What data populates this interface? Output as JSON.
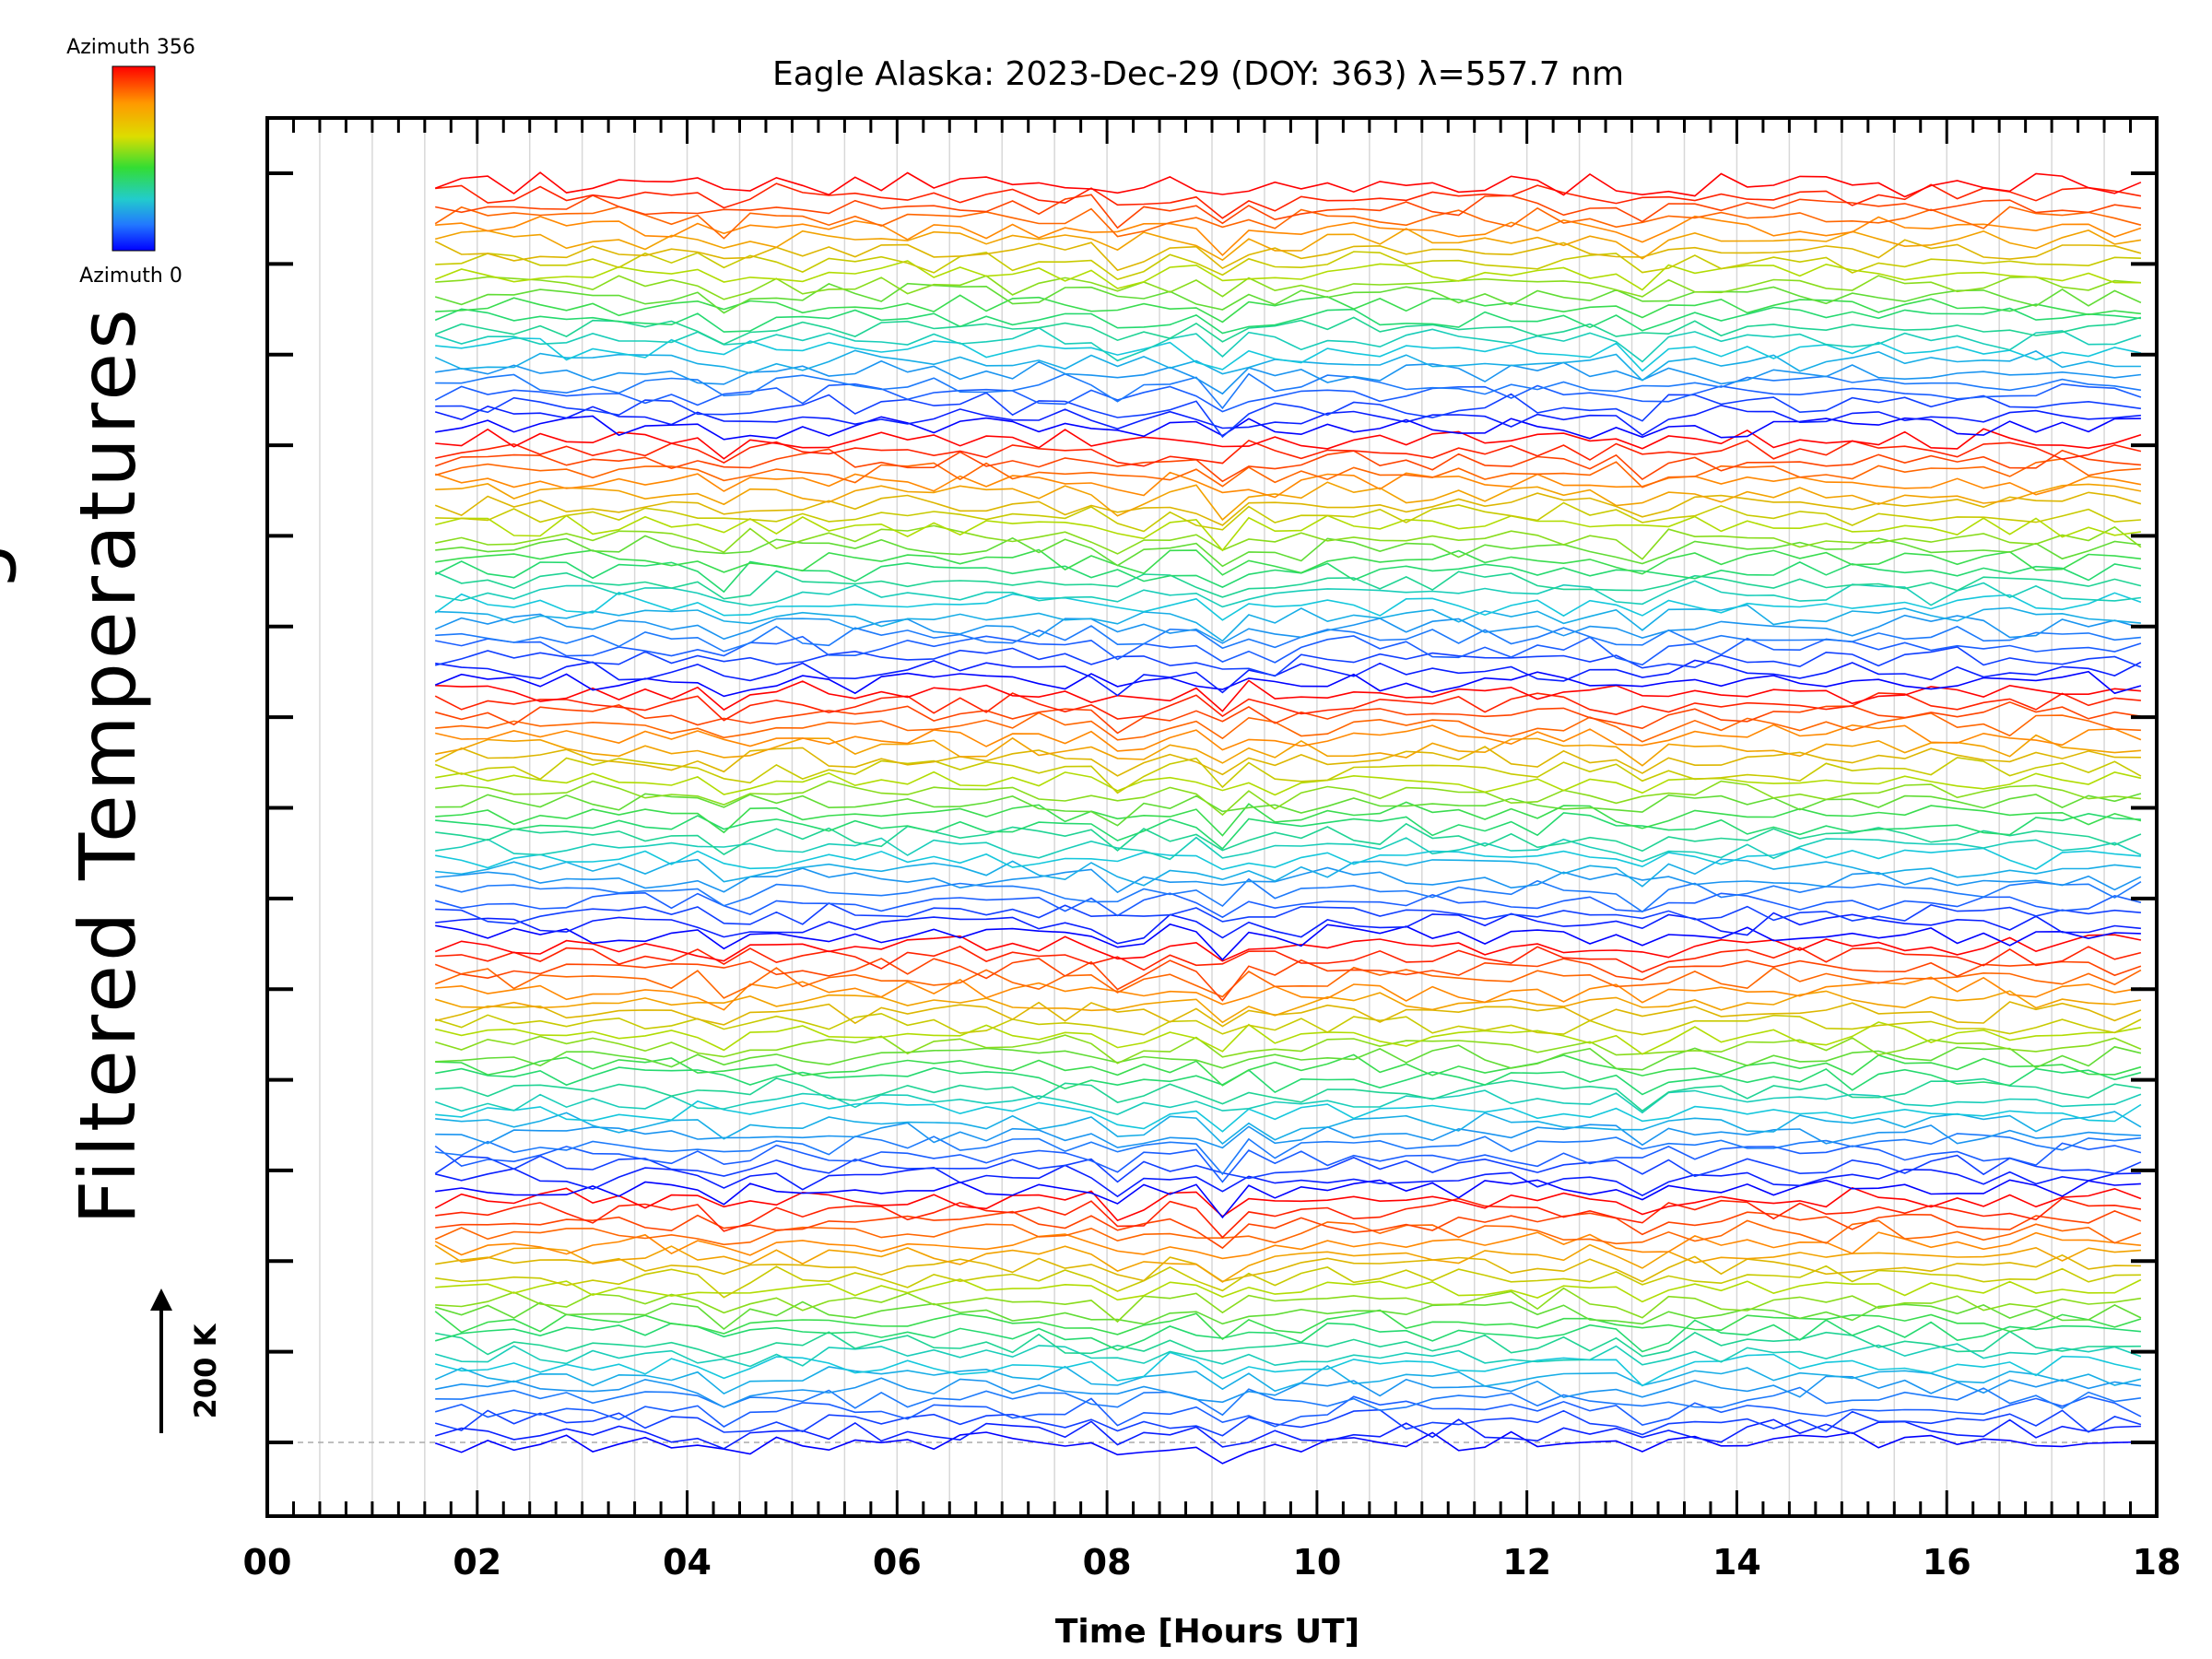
{
  "chart_data": {
    "type": "line",
    "title": "Eagle Alaska: 2023-Dec-29 (DOY: 363) λ=557.7 nm",
    "xlabel": "Time [Hours UT]",
    "ylabel": "Filtered Temperatures",
    "ylabel_partial": "g",
    "scale_label": "200 K",
    "xlim": [
      0,
      18
    ],
    "x_tick_labels": [
      "00",
      "02",
      "04",
      "06",
      "08",
      "10",
      "12",
      "14",
      "16",
      "18"
    ],
    "x_ticks": [
      0,
      2,
      4,
      6,
      8,
      10,
      12,
      14,
      16,
      18
    ],
    "data_start_hour": 1.6,
    "data_end_hour": 18.0,
    "sample_interval_hours": 0.25,
    "num_traces": 115,
    "traces_per_ring_cycle": 23,
    "y_tick_count": 15,
    "azimuth_range": [
      0,
      356
    ],
    "colorbar": {
      "top_label": "Azimuth 356",
      "bottom_label": "Azimuth 0",
      "colors": [
        "#ff0000",
        "#ff8000",
        "#ffff00",
        "#80ff00",
        "#00ff80",
        "#00ffff",
        "#0080ff",
        "#0000ff"
      ]
    },
    "dip_events_hours": [
      8.2,
      9.05,
      9.7,
      13.1,
      4.4
    ]
  }
}
